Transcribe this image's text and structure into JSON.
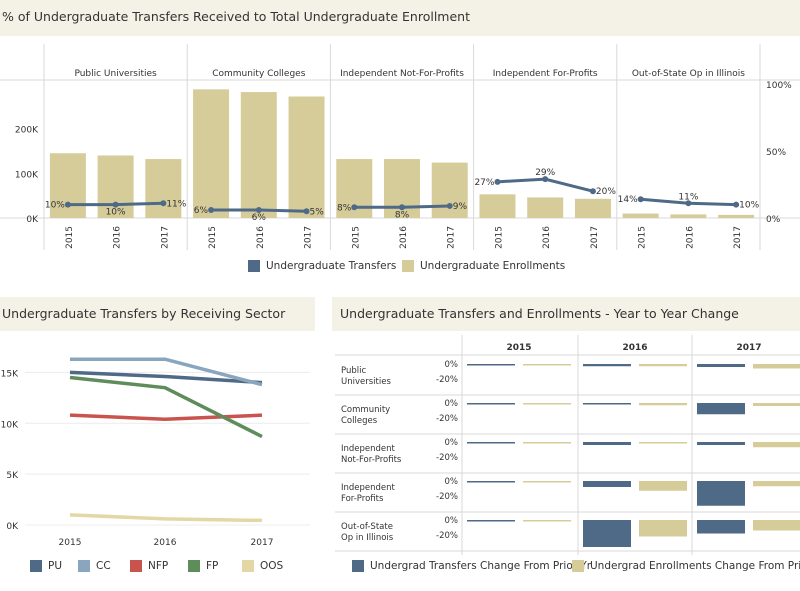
{
  "colors": {
    "transfers": "#4e6a86",
    "enrollments": "#d6cc9a",
    "pu": "#4e6a86",
    "cc": "#8aa5be",
    "nfp": "#c9544e",
    "fp": "#5e8c5a",
    "oos": "#e3d7a5",
    "title_bg": "#f4f1e6",
    "grid": "#d9d9d9"
  },
  "top": {
    "title": "% of Undergraduate Transfers Received to Total Undergraduate Enrollment",
    "legend": [
      "Undergraduate Transfers",
      "Undergraduate Enrollments"
    ]
  },
  "bottom_left": {
    "title": "Undergraduate Transfers by Receiving Sector"
  },
  "bottom_right": {
    "title": "Undergraduate Transfers and Enrollments - Year to Year Change",
    "legend": [
      "Undergrad Transfers Change From Prior Yr",
      "Undergrad Enrollments Change From Prior Yr"
    ]
  },
  "chart_data": [
    {
      "type": "bar",
      "title": "% of Undergraduate Transfers Received to Total Undergraduate Enrollment",
      "panels": [
        "Public Universities",
        "Community Colleges",
        "Independent Not-For-Profits",
        "Independent For-Profits",
        "Out-of-State Op in Illinois"
      ],
      "categories": [
        "2015",
        "2016",
        "2017"
      ],
      "series": [
        {
          "name": "Undergraduate Enrollments",
          "axis": "left",
          "values": [
            [
              145000,
              140000,
              132000
            ],
            [
              288000,
              282000,
              272000
            ],
            [
              132000,
              132000,
              124000
            ],
            [
              53000,
              46000,
              43000
            ],
            [
              10000,
              8000,
              7000
            ]
          ]
        },
        {
          "name": "Undergraduate Transfers",
          "axis": "right",
          "unit": "%",
          "values": [
            [
              10,
              10,
              11
            ],
            [
              6,
              6,
              5
            ],
            [
              8,
              8,
              9
            ],
            [
              27,
              29,
              20
            ],
            [
              14,
              11,
              10
            ]
          ],
          "labels": [
            [
              "10%",
              "10%",
              "11%"
            ],
            [
              "6%",
              "6%",
              "5%"
            ],
            [
              "8%",
              "8%",
              "9%"
            ],
            [
              "27%",
              "29%",
              "20%"
            ],
            [
              "14%",
              "11%",
              "10%"
            ]
          ]
        }
      ],
      "ylim_left": [
        0,
        300000
      ],
      "yticks_left": [
        {
          "v": 0,
          "label": "0K"
        },
        {
          "v": 100000,
          "label": "100K"
        },
        {
          "v": 200000,
          "label": "200K"
        }
      ],
      "ylim_right": [
        0,
        100
      ],
      "yticks_right": [
        {
          "v": 0,
          "label": "0%"
        },
        {
          "v": 50,
          "label": "50%"
        },
        {
          "v": 100,
          "label": "100%"
        }
      ],
      "legend_position": "bottom"
    },
    {
      "type": "line",
      "title": "Undergraduate Transfers by Receiving Sector",
      "x": [
        "2015",
        "2016",
        "2017"
      ],
      "series": [
        {
          "name": "PU",
          "values": [
            15000,
            14600,
            14000
          ]
        },
        {
          "name": "CC",
          "values": [
            16300,
            16300,
            13800
          ]
        },
        {
          "name": "NFP",
          "values": [
            10800,
            10400,
            10800
          ]
        },
        {
          "name": "FP",
          "values": [
            14500,
            13500,
            8700
          ]
        },
        {
          "name": "OOS",
          "values": [
            1000,
            600,
            450
          ]
        }
      ],
      "ylim": [
        0,
        17500
      ],
      "yticks": [
        {
          "v": 0,
          "label": "0K"
        },
        {
          "v": 5000,
          "label": "5K"
        },
        {
          "v": 10000,
          "label": "10K"
        },
        {
          "v": 15000,
          "label": "15K"
        }
      ],
      "legend_position": "bottom"
    },
    {
      "type": "bar",
      "title": "Undergraduate Transfers and Enrollments - Year to Year Change",
      "columns": [
        "2015",
        "2016",
        "2017"
      ],
      "rows": [
        "Public\nUniversities",
        "Community\nColleges",
        "Independent\nNot-For-Profits",
        "Independent\nFor-Profits",
        "Out-of-State\nOp in Illinois"
      ],
      "series": [
        {
          "name": "Undergrad Transfers Change From Prior Yr",
          "values": [
            [
              -0.5,
              -3,
              -4
            ],
            [
              -0.5,
              -0.5,
              -15
            ],
            [
              -0.5,
              -4,
              -4
            ],
            [
              -0.5,
              -8,
              -33
            ],
            [
              -0.5,
              -36,
              -18
            ]
          ]
        },
        {
          "name": "Undergrad Enrollments Change From Prior Yr",
          "values": [
            [
              -0.5,
              -3,
              -6
            ],
            [
              -0.5,
              -3,
              -4
            ],
            [
              -0.5,
              -0.5,
              -7
            ],
            [
              -0.5,
              -13,
              -7
            ],
            [
              -0.5,
              -22,
              -14
            ]
          ]
        }
      ],
      "yticks": [
        {
          "v": 0,
          "label": "0%"
        },
        {
          "v": -20,
          "label": "-20%"
        }
      ],
      "ylim": [
        -40,
        5
      ],
      "legend_position": "bottom"
    }
  ]
}
